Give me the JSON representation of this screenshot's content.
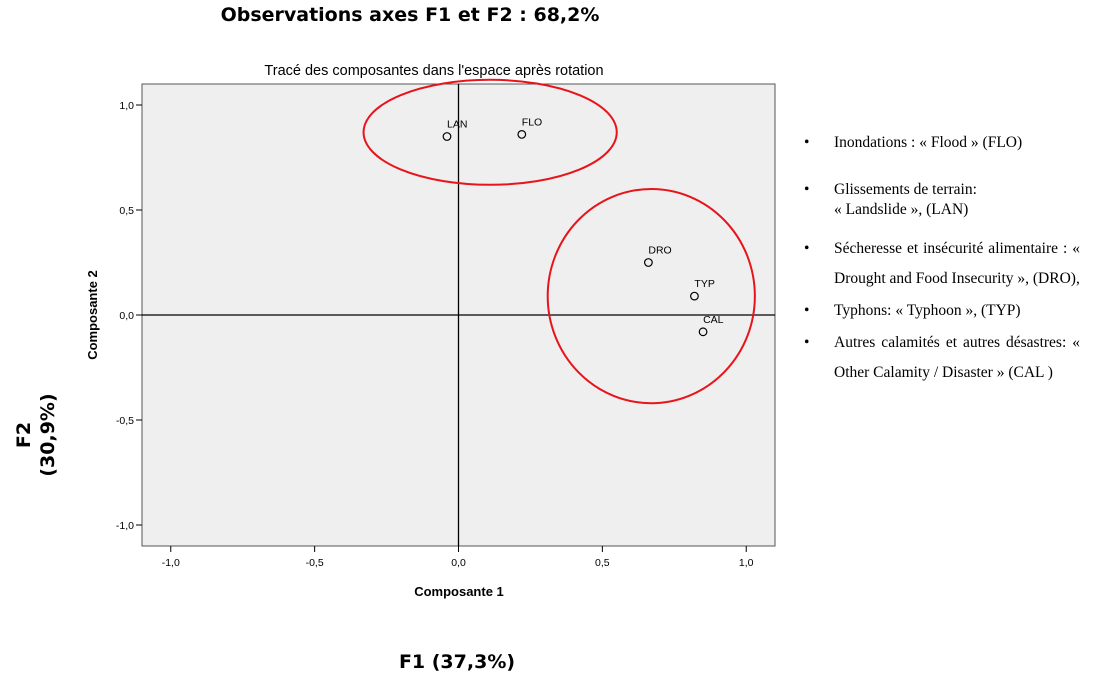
{
  "figure": {
    "title": "Observations axes F1 et F2 : 68,2%",
    "x_axis_caption": "F1 (37,3%)",
    "y_axis_caption_line1": "F2",
    "y_axis_caption_line2": "(30,9%)"
  },
  "chart_data": {
    "type": "scatter",
    "title": "Tracé des composantes dans l'espace après rotation",
    "xlabel": "Composante 1",
    "ylabel": "Composante 2",
    "xlim": [
      -1.1,
      1.1
    ],
    "ylim": [
      -1.1,
      1.1
    ],
    "x_ticks": [
      -1.0,
      -0.5,
      0.0,
      0.5,
      1.0
    ],
    "y_ticks": [
      -1.0,
      -0.5,
      0.0,
      0.5,
      1.0
    ],
    "x_tick_labels": [
      "-1,0",
      "-0,5",
      "0,0",
      "0,5",
      "1,0"
    ],
    "y_tick_labels": [
      "-1,0",
      "-0,5",
      "0,0",
      "0,5",
      "1,0"
    ],
    "grid": false,
    "zero_lines": true,
    "plot_background": "#efefef",
    "points": [
      {
        "label": "LAN",
        "x": -0.04,
        "y": 0.85
      },
      {
        "label": "FLO",
        "x": 0.22,
        "y": 0.86
      },
      {
        "label": "DRO",
        "x": 0.66,
        "y": 0.25
      },
      {
        "label": "TYP",
        "x": 0.82,
        "y": 0.09
      },
      {
        "label": "CAL",
        "x": 0.85,
        "y": -0.08
      }
    ],
    "annotations": [
      {
        "shape": "ellipse",
        "color": "#e8141b",
        "cx": 0.11,
        "cy": 0.87,
        "rx": 0.44,
        "ry": 0.25
      },
      {
        "shape": "ellipse",
        "color": "#e8141b",
        "cx": 0.67,
        "cy": 0.09,
        "rx": 0.36,
        "ry": 0.51
      }
    ]
  },
  "legend": {
    "items": [
      "Inondations : « Flood » (FLO)",
      "Glissements de terrain:\n« Landslide », (LAN)",
      "Sécheresse et insécurité alimentaire : « Drought and Food Insecurity », (DRO),",
      "Typhons: « Typhoon », (TYP)",
      "Autres calamités et autres désastres: « Other Calamity / Disaster » (CAL )"
    ]
  }
}
